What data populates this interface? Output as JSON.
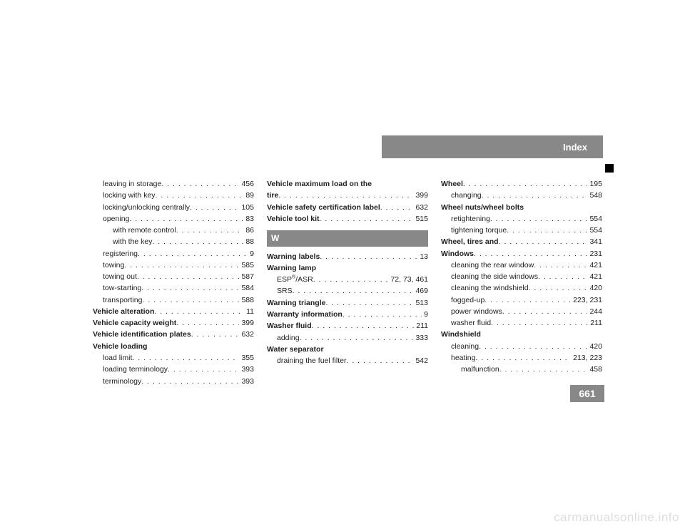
{
  "header": {
    "title": "Index"
  },
  "page_number": "661",
  "watermark": "carmanualsonline.info",
  "section_letter": "W",
  "col1": [
    {
      "label": "leaving in storage",
      "page": "456",
      "indent": 1
    },
    {
      "label": "locking with key",
      "page": "89",
      "indent": 1
    },
    {
      "label": "locking/unlocking centrally",
      "page": "105",
      "indent": 1
    },
    {
      "label": "opening",
      "page": "83",
      "indent": 1
    },
    {
      "label": "with remote control",
      "page": "86",
      "indent": 2
    },
    {
      "label": "with the key",
      "page": "88",
      "indent": 2
    },
    {
      "label": "registering",
      "page": "9",
      "indent": 1
    },
    {
      "label": "towing",
      "page": "585",
      "indent": 1
    },
    {
      "label": "towing out",
      "page": "587",
      "indent": 1
    },
    {
      "label": "tow-starting",
      "page": "584",
      "indent": 1
    },
    {
      "label": "transporting",
      "page": "588",
      "indent": 1
    },
    {
      "label": "Vehicle alteration",
      "page": "11",
      "bold": true
    },
    {
      "label": "Vehicle capacity weight",
      "page": "399",
      "bold": true
    },
    {
      "label": "Vehicle identification plates",
      "page": "632",
      "bold": true
    },
    {
      "label": "Vehicle loading",
      "page": "",
      "bold": true,
      "nopage": true
    },
    {
      "label": "load limit",
      "page": "355",
      "indent": 1
    },
    {
      "label": "loading terminology",
      "page": "393",
      "indent": 1
    },
    {
      "label": "terminology",
      "page": "393",
      "indent": 1
    }
  ],
  "col2a": [
    {
      "label_pre": "Vehicle maximum load on the",
      "bold": true,
      "continuation": true
    },
    {
      "label": "tire",
      "page": "399",
      "bold": true
    },
    {
      "label": "Vehicle safety certification label",
      "page": "632",
      "bold": true
    },
    {
      "label": "Vehicle tool kit",
      "page": "515",
      "bold": true
    }
  ],
  "col2b": [
    {
      "label": "Warning labels",
      "page": "13",
      "bold": true
    },
    {
      "label": "Warning lamp",
      "page": "",
      "bold": true,
      "nopage": true
    },
    {
      "label": "ESP®/ASR",
      "page": "72, 73, 461",
      "indent": 1,
      "esp": true
    },
    {
      "label": "SRS",
      "page": "469",
      "indent": 1
    },
    {
      "label": "Warning triangle",
      "page": "513",
      "bold": true
    },
    {
      "label": "Warranty information",
      "page": "9",
      "bold": true
    },
    {
      "label": "Washer fluid",
      "page": "211",
      "bold": true
    },
    {
      "label": "adding",
      "page": "333",
      "indent": 1
    },
    {
      "label": "Water separator",
      "page": "",
      "bold": true,
      "nopage": true
    },
    {
      "label": "draining the fuel filter",
      "page": "542",
      "indent": 1
    }
  ],
  "col3": [
    {
      "label": "Wheel",
      "page": "195",
      "bold": true
    },
    {
      "label": "changing",
      "page": "548",
      "indent": 1
    },
    {
      "label": "Wheel nuts/wheel bolts",
      "page": "",
      "bold": true,
      "nopage": true
    },
    {
      "label": "retightening",
      "page": "554",
      "indent": 1
    },
    {
      "label": "tightening torque",
      "page": "554",
      "indent": 1
    },
    {
      "label": "Wheel, tires and",
      "page": "341",
      "bold": true
    },
    {
      "label": "Windows",
      "page": "231",
      "bold": true
    },
    {
      "label": "cleaning the rear window",
      "page": "421",
      "indent": 1
    },
    {
      "label": "cleaning the side windows",
      "page": "421",
      "indent": 1
    },
    {
      "label": "cleaning the windshield",
      "page": "420",
      "indent": 1
    },
    {
      "label": "fogged-up",
      "page": "223, 231",
      "indent": 1
    },
    {
      "label": "power windows",
      "page": "244",
      "indent": 1
    },
    {
      "label": "washer fluid",
      "page": "211",
      "indent": 1
    },
    {
      "label": "Windshield",
      "page": "",
      "bold": true,
      "nopage": true
    },
    {
      "label": "cleaning",
      "page": "420",
      "indent": 1
    },
    {
      "label": "heating",
      "page": "213, 223",
      "indent": 1
    },
    {
      "label": "malfunction",
      "page": "458",
      "indent": 2
    }
  ]
}
